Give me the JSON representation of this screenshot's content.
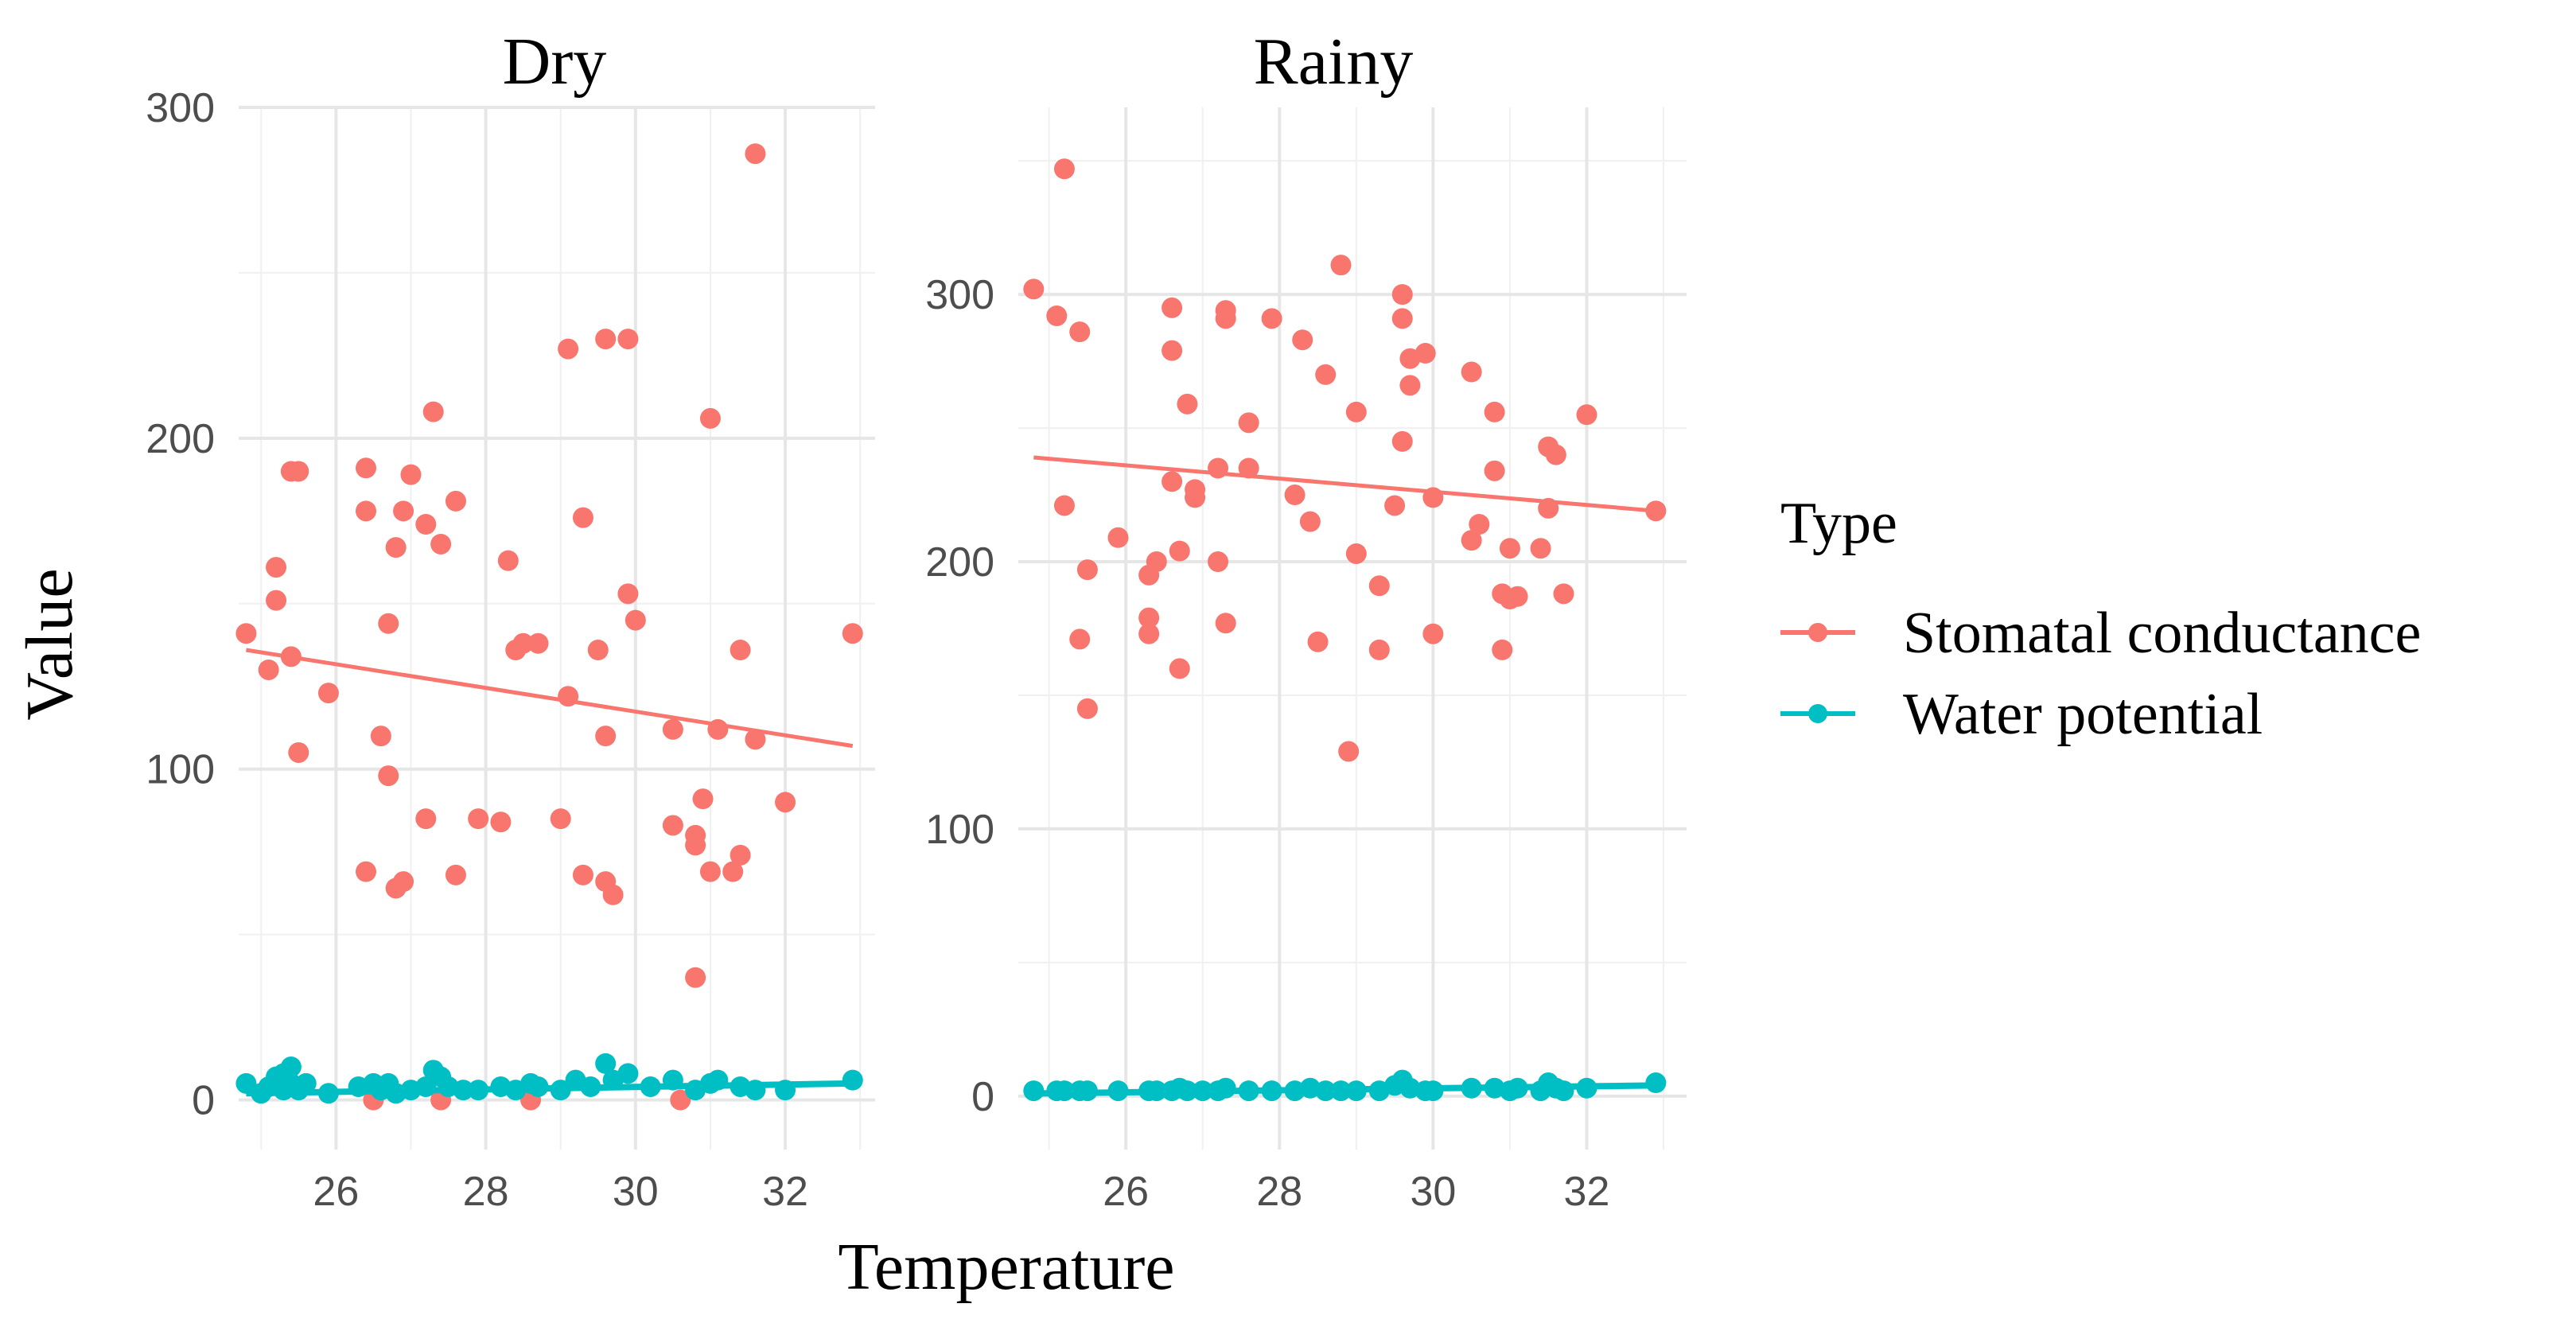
{
  "chart_data": [
    {
      "type": "scatter",
      "panel": "Dry",
      "title": "Dry",
      "xlabel": "Temperature",
      "ylabel": "Value",
      "xlim": [
        24.7,
        33.2
      ],
      "ylim": [
        -15,
        300
      ],
      "x_ticks": [
        26,
        28,
        30,
        32
      ],
      "y_ticks": [
        0,
        100,
        200,
        300
      ],
      "grid": true,
      "series": [
        {
          "name": "Stomatal conductance",
          "color": "#F8766D",
          "trend": {
            "x": [
              24.8,
              32.9
            ],
            "y": [
              136,
              107
            ]
          },
          "points": [
            [
              24.8,
              141
            ],
            [
              25.1,
              130
            ],
            [
              25.2,
              161
            ],
            [
              25.2,
              151
            ],
            [
              25.4,
              190
            ],
            [
              25.5,
              190
            ],
            [
              25.4,
              134
            ],
            [
              25.5,
              105
            ],
            [
              25.9,
              123
            ],
            [
              26.4,
              191
            ],
            [
              26.4,
              178
            ],
            [
              26.4,
              69
            ],
            [
              26.6,
              110
            ],
            [
              26.7,
              144
            ],
            [
              26.7,
              98
            ],
            [
              26.8,
              167
            ],
            [
              26.8,
              64
            ],
            [
              26.9,
              66
            ],
            [
              26.9,
              178
            ],
            [
              27.0,
              189
            ],
            [
              27.2,
              174
            ],
            [
              27.2,
              85
            ],
            [
              27.3,
              208
            ],
            [
              27.4,
              168
            ],
            [
              27.6,
              181
            ],
            [
              27.6,
              68
            ],
            [
              27.9,
              85
            ],
            [
              28.2,
              84
            ],
            [
              28.3,
              163
            ],
            [
              28.4,
              136
            ],
            [
              28.5,
              138
            ],
            [
              28.7,
              138
            ],
            [
              29.0,
              85
            ],
            [
              29.1,
              122
            ],
            [
              29.1,
              227
            ],
            [
              29.3,
              176
            ],
            [
              29.3,
              68
            ],
            [
              29.5,
              136
            ],
            [
              29.6,
              230
            ],
            [
              29.6,
              110
            ],
            [
              29.6,
              66
            ],
            [
              29.7,
              62
            ],
            [
              29.9,
              230
            ],
            [
              29.9,
              153
            ],
            [
              30.0,
              145
            ],
            [
              30.5,
              112
            ],
            [
              30.5,
              83
            ],
            [
              30.8,
              80
            ],
            [
              30.8,
              77
            ],
            [
              30.9,
              91
            ],
            [
              30.8,
              37
            ],
            [
              31.0,
              69
            ],
            [
              31.0,
              206
            ],
            [
              31.1,
              112
            ],
            [
              31.3,
              69
            ],
            [
              31.4,
              74
            ],
            [
              31.4,
              136
            ],
            [
              31.6,
              109
            ],
            [
              31.6,
              286
            ],
            [
              32.0,
              90
            ],
            [
              32.9,
              141
            ],
            [
              26.5,
              0
            ],
            [
              27.4,
              0
            ],
            [
              28.6,
              0
            ],
            [
              30.6,
              0
            ]
          ]
        },
        {
          "name": "Water potential",
          "color": "#00BFC4",
          "trend": {
            "x": [
              24.8,
              32.9
            ],
            "y": [
              2,
              5
            ]
          },
          "points": [
            [
              24.8,
              5
            ],
            [
              25.0,
              2
            ],
            [
              25.1,
              4
            ],
            [
              25.2,
              7
            ],
            [
              25.3,
              3
            ],
            [
              25.3,
              8
            ],
            [
              25.4,
              10
            ],
            [
              25.4,
              5
            ],
            [
              25.5,
              3
            ],
            [
              25.6,
              5
            ],
            [
              25.9,
              2
            ],
            [
              26.3,
              4
            ],
            [
              26.5,
              5
            ],
            [
              26.6,
              3
            ],
            [
              26.7,
              5
            ],
            [
              26.8,
              2
            ],
            [
              27.0,
              3
            ],
            [
              27.2,
              4
            ],
            [
              27.3,
              9
            ],
            [
              27.4,
              7
            ],
            [
              27.5,
              4
            ],
            [
              27.7,
              3
            ],
            [
              27.9,
              3
            ],
            [
              28.2,
              4
            ],
            [
              28.4,
              3
            ],
            [
              28.6,
              5
            ],
            [
              28.7,
              4
            ],
            [
              29.0,
              3
            ],
            [
              29.2,
              6
            ],
            [
              29.4,
              4
            ],
            [
              29.6,
              11
            ],
            [
              29.7,
              6
            ],
            [
              29.9,
              8
            ],
            [
              30.2,
              4
            ],
            [
              30.5,
              6
            ],
            [
              30.8,
              3
            ],
            [
              31.0,
              5
            ],
            [
              31.1,
              6
            ],
            [
              31.4,
              4
            ],
            [
              31.6,
              3
            ],
            [
              32.0,
              3
            ],
            [
              32.9,
              6
            ]
          ]
        }
      ]
    },
    {
      "type": "scatter",
      "panel": "Rainy",
      "title": "Rainy",
      "xlabel": "Temperature",
      "ylabel": "Value",
      "xlim": [
        24.6,
        33.3
      ],
      "ylim": [
        -20,
        370
      ],
      "x_ticks": [
        26,
        28,
        30,
        32
      ],
      "y_ticks": [
        0,
        100,
        200,
        300
      ],
      "grid": true,
      "series": [
        {
          "name": "Stomatal conductance",
          "color": "#F8766D",
          "trend": {
            "x": [
              24.8,
              32.9
            ],
            "y": [
              239,
              219
            ]
          },
          "points": [
            [
              24.8,
              302
            ],
            [
              25.1,
              292
            ],
            [
              25.2,
              347
            ],
            [
              25.2,
              221
            ],
            [
              25.4,
              286
            ],
            [
              25.4,
              171
            ],
            [
              25.5,
              197
            ],
            [
              25.5,
              145
            ],
            [
              25.9,
              209
            ],
            [
              26.3,
              195
            ],
            [
              26.3,
              179
            ],
            [
              26.3,
              173
            ],
            [
              26.4,
              200
            ],
            [
              26.6,
              295
            ],
            [
              26.6,
              230
            ],
            [
              26.6,
              279
            ],
            [
              26.7,
              204
            ],
            [
              26.7,
              160
            ],
            [
              26.8,
              259
            ],
            [
              26.9,
              227
            ],
            [
              26.9,
              224
            ],
            [
              27.2,
              235
            ],
            [
              27.2,
              200
            ],
            [
              27.3,
              294
            ],
            [
              27.3,
              291
            ],
            [
              27.3,
              177
            ],
            [
              27.6,
              252
            ],
            [
              27.6,
              235
            ],
            [
              27.9,
              291
            ],
            [
              28.2,
              225
            ],
            [
              28.3,
              283
            ],
            [
              28.4,
              215
            ],
            [
              28.5,
              170
            ],
            [
              28.6,
              270
            ],
            [
              28.8,
              311
            ],
            [
              28.9,
              129
            ],
            [
              29.0,
              256
            ],
            [
              29.0,
              203
            ],
            [
              29.3,
              191
            ],
            [
              29.3,
              167
            ],
            [
              29.5,
              221
            ],
            [
              29.6,
              300
            ],
            [
              29.6,
              291
            ],
            [
              29.6,
              245
            ],
            [
              29.7,
              266
            ],
            [
              29.7,
              276
            ],
            [
              29.9,
              278
            ],
            [
              30.0,
              224
            ],
            [
              30.0,
              173
            ],
            [
              30.5,
              271
            ],
            [
              30.6,
              214
            ],
            [
              30.5,
              208
            ],
            [
              30.8,
              256
            ],
            [
              30.8,
              234
            ],
            [
              30.9,
              188
            ],
            [
              30.9,
              167
            ],
            [
              31.0,
              186
            ],
            [
              31.0,
              205
            ],
            [
              31.1,
              187
            ],
            [
              31.4,
              205
            ],
            [
              31.5,
              243
            ],
            [
              31.5,
              220
            ],
            [
              31.6,
              240
            ],
            [
              31.7,
              188
            ],
            [
              32.0,
              255
            ],
            [
              32.9,
              219
            ]
          ]
        },
        {
          "name": "Water potential",
          "color": "#00BFC4",
          "trend": {
            "x": [
              24.8,
              32.9
            ],
            "y": [
              1,
              4
            ]
          },
          "points": [
            [
              24.8,
              2
            ],
            [
              25.1,
              2
            ],
            [
              25.2,
              2
            ],
            [
              25.4,
              2
            ],
            [
              25.5,
              2
            ],
            [
              25.9,
              2
            ],
            [
              26.3,
              2
            ],
            [
              26.4,
              2
            ],
            [
              26.6,
              2
            ],
            [
              26.7,
              3
            ],
            [
              26.8,
              2
            ],
            [
              27.0,
              2
            ],
            [
              27.2,
              2
            ],
            [
              27.3,
              3
            ],
            [
              27.6,
              2
            ],
            [
              27.9,
              2
            ],
            [
              28.2,
              2
            ],
            [
              28.4,
              3
            ],
            [
              28.6,
              2
            ],
            [
              28.8,
              2
            ],
            [
              29.0,
              2
            ],
            [
              29.3,
              2
            ],
            [
              29.5,
              4
            ],
            [
              29.6,
              6
            ],
            [
              29.7,
              3
            ],
            [
              29.9,
              2
            ],
            [
              30.0,
              2
            ],
            [
              30.5,
              3
            ],
            [
              30.8,
              3
            ],
            [
              31.0,
              2
            ],
            [
              31.1,
              3
            ],
            [
              31.4,
              2
            ],
            [
              31.5,
              5
            ],
            [
              31.6,
              3
            ],
            [
              31.7,
              2
            ],
            [
              32.0,
              3
            ],
            [
              32.9,
              5
            ]
          ]
        }
      ]
    }
  ],
  "legend": {
    "title": "Type",
    "items": [
      {
        "label": "Stomatal conductance",
        "color": "#F8766D"
      },
      {
        "label": "Water potential",
        "color": "#00BFC4"
      }
    ]
  }
}
